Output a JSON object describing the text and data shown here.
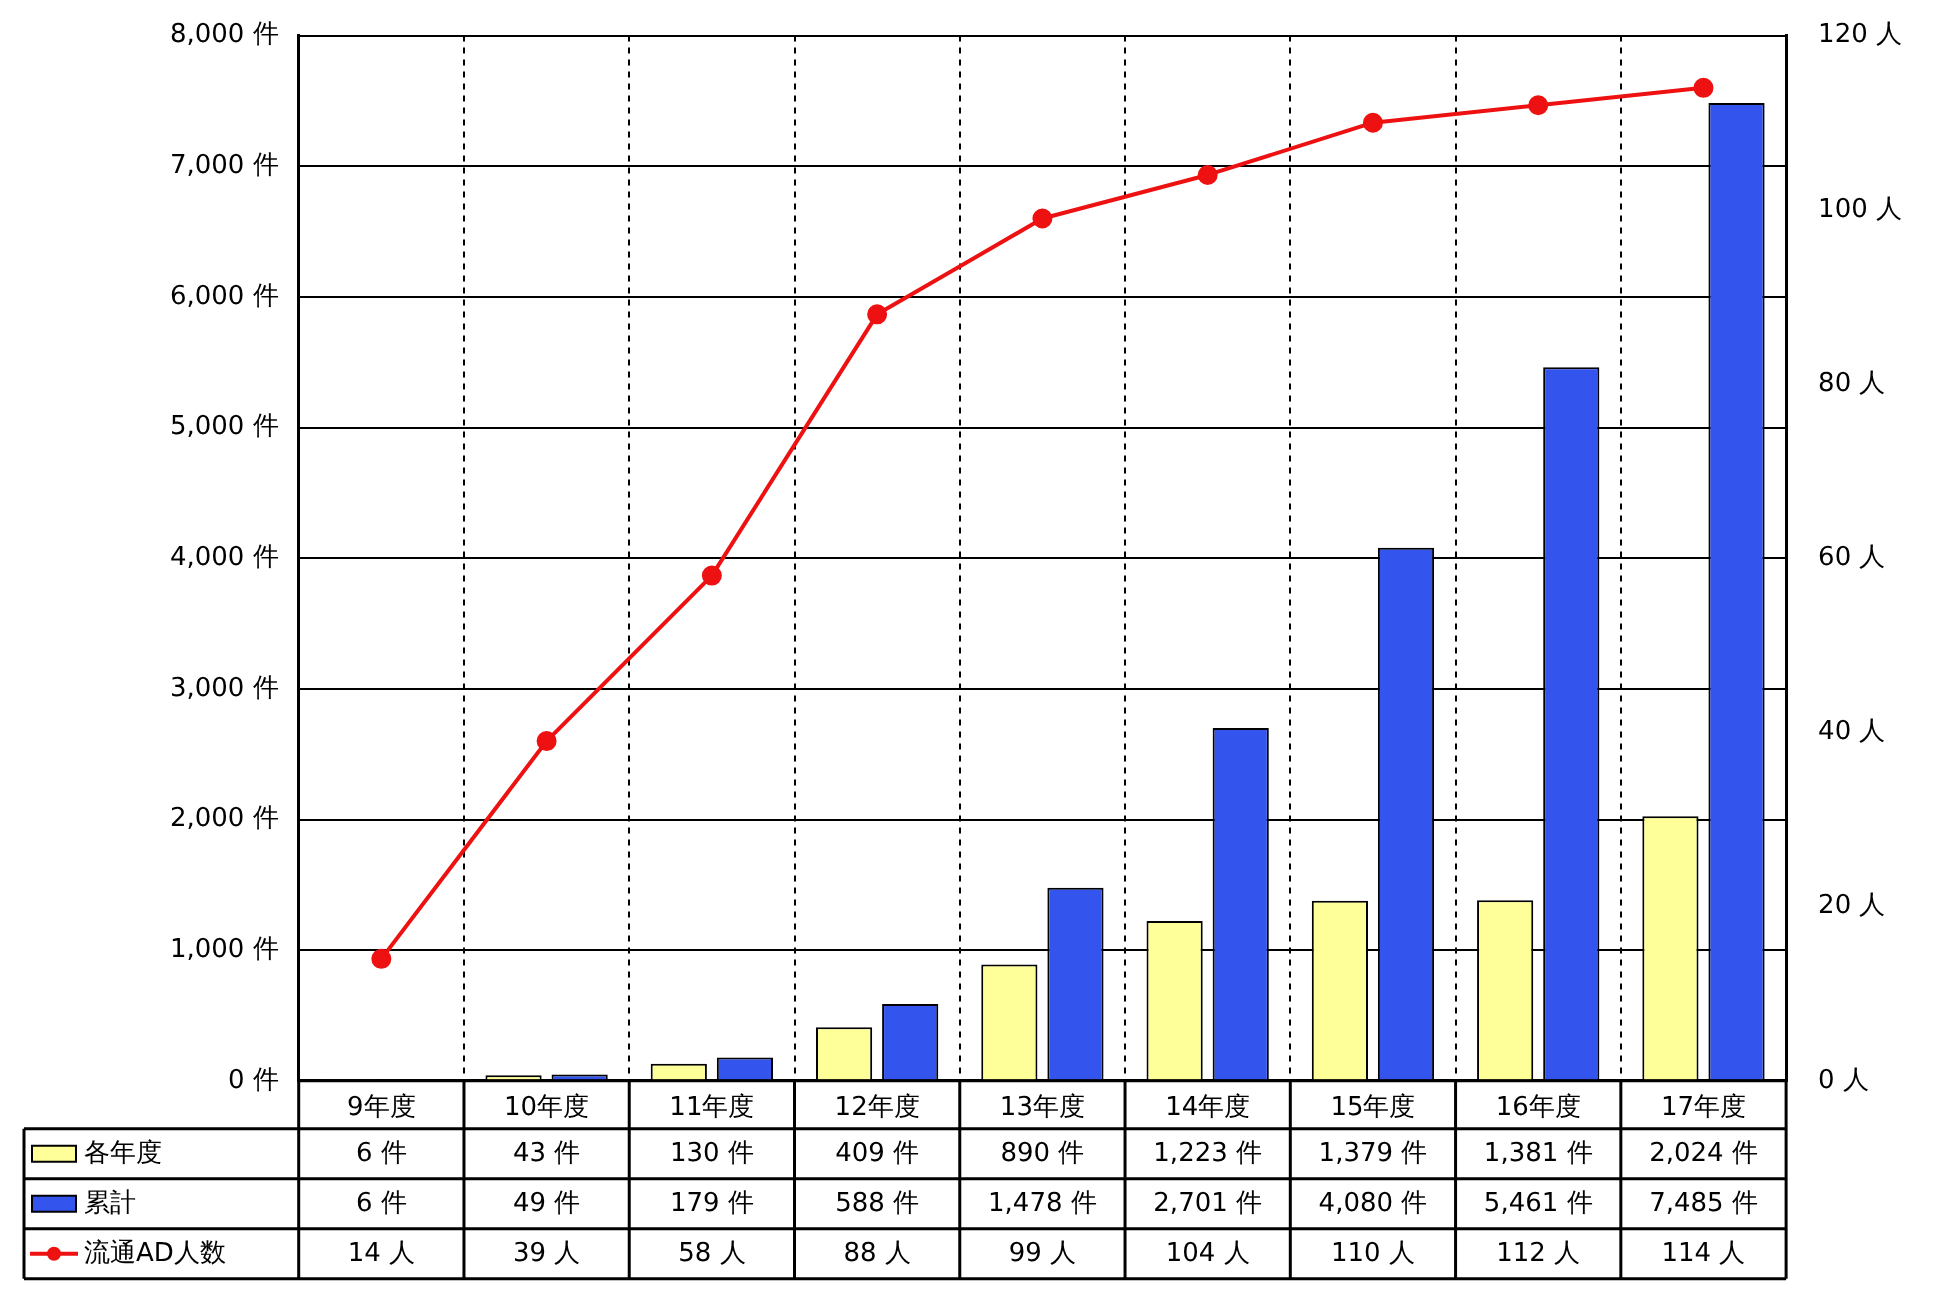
{
  "chart_data": {
    "type": "bar",
    "categories": [
      "9年度",
      "10年度",
      "11年度",
      "12年度",
      "13年度",
      "14年度",
      "15年度",
      "16年度",
      "17年度"
    ],
    "series": [
      {
        "name": "各年度",
        "color": "#ffff99",
        "values": [
          6,
          43,
          130,
          409,
          890,
          1223,
          1379,
          1381,
          2024
        ],
        "value_labels": [
          "6 件",
          "43 件",
          "130 件",
          "409 件",
          "890 件",
          "1,223 件",
          "1,379 件",
          "1,381 件",
          "2,024 件"
        ]
      },
      {
        "name": "累計",
        "color": "#3355ee",
        "values": [
          6,
          49,
          179,
          588,
          1478,
          2701,
          4080,
          5461,
          7485
        ],
        "value_labels": [
          "6 件",
          "49 件",
          "179 件",
          "588 件",
          "1,478 件",
          "2,701 件",
          "4,080 件",
          "5,461 件",
          "7,485 件"
        ]
      },
      {
        "name": "流通AD人数",
        "type": "line",
        "axis": "y2",
        "color": "#ee1111",
        "marker": "circle",
        "values": [
          14,
          39,
          58,
          88,
          99,
          104,
          110,
          112,
          114
        ],
        "value_labels": [
          "14 人",
          "39 人",
          "58 人",
          "88 人",
          "99 人",
          "104 人",
          "110 人",
          "112 人",
          "114 人"
        ]
      }
    ],
    "ylim": [
      0,
      8000
    ],
    "yticks": [
      {
        "value": 0,
        "label": "0 件"
      },
      {
        "value": 1000,
        "label": "1,000 件"
      },
      {
        "value": 2000,
        "label": "2,000 件"
      },
      {
        "value": 3000,
        "label": "3,000 件"
      },
      {
        "value": 4000,
        "label": "4,000 件"
      },
      {
        "value": 5000,
        "label": "5,000 件"
      },
      {
        "value": 6000,
        "label": "6,000 件"
      },
      {
        "value": 7000,
        "label": "7,000 件"
      },
      {
        "value": 8000,
        "label": "8,000 件"
      }
    ],
    "y2lim": [
      0,
      120
    ],
    "y2ticks": [
      {
        "value": 0,
        "label": "0 人"
      },
      {
        "value": 20,
        "label": "20 人"
      },
      {
        "value": 40,
        "label": "40 人"
      },
      {
        "value": 60,
        "label": "60 人"
      },
      {
        "value": 80,
        "label": "80 人"
      },
      {
        "value": 100,
        "label": "100 人"
      },
      {
        "value": 120,
        "label": "120 人"
      }
    ],
    "grid": true,
    "legend": "bottom left"
  }
}
